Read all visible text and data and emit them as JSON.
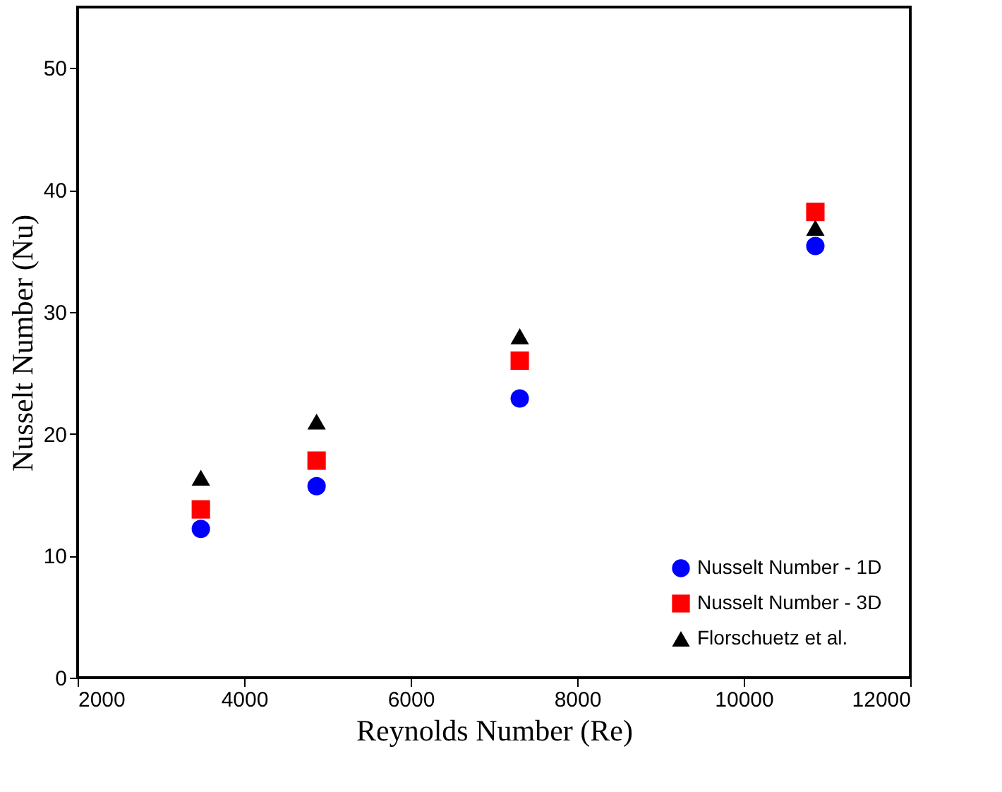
{
  "chart_data": {
    "type": "scatter",
    "xlabel": "Reynolds Number (Re)",
    "ylabel": "Nusselt Number (Nu)",
    "x": [
      3480,
      4870,
      7310,
      10860
    ],
    "series": [
      {
        "name": "Nusselt Number - 1D",
        "color": "#0000ff",
        "marker": "circle",
        "values": [
          12.2,
          15.7,
          22.9,
          35.4
        ]
      },
      {
        "name": "Nusselt Number - 3D",
        "color": "#ff0000",
        "marker": "square",
        "values": [
          13.8,
          17.8,
          26.0,
          38.2
        ]
      },
      {
        "name": "Florschuetz et al.",
        "color": "#000000",
        "marker": "triangle",
        "values": [
          16.4,
          21.0,
          28.0,
          36.9
        ]
      }
    ],
    "xlim": [
      2000,
      12000
    ],
    "xticks": [
      2000,
      4000,
      6000,
      8000,
      10000,
      12000
    ],
    "ylim": [
      0,
      55
    ],
    "yticks": [
      0,
      10,
      20,
      30,
      40,
      50
    ],
    "grid": false,
    "legend": "bottom right"
  }
}
